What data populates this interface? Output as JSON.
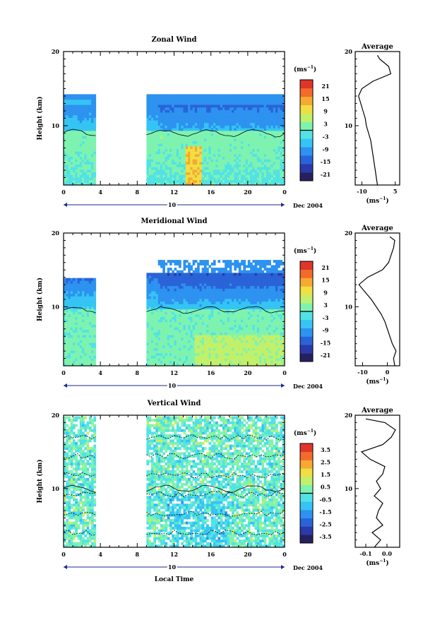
{
  "colors": {
    "cmap": [
      "#27205f",
      "#2a3aa9",
      "#2a63d8",
      "#2d92f0",
      "#35c4f3",
      "#52e2e6",
      "#7ef3b0",
      "#c1f06a",
      "#f0de42",
      "#f7a932",
      "#f36b2b",
      "#e0352a"
    ],
    "contour": "#000000",
    "axis": "#000000"
  },
  "shared": {
    "x_label": "Local Time",
    "date_day": "10",
    "date_label": "Dec 2004",
    "height_axis_label": "Height (km)",
    "avg_title": "Average",
    "unit_label": "(ms",
    "unit_sup": "−1",
    "x_ticks": [
      "0",
      "4",
      "8",
      "12",
      "16",
      "20",
      "0"
    ],
    "y_ticks": [
      "20",
      "10"
    ]
  },
  "chart_data": [
    {
      "type": "heatmap",
      "title": "Zonal Wind",
      "ylabel": "Height (km)",
      "x_range_hours": [
        0,
        24
      ],
      "y_range_km": [
        2,
        20
      ],
      "gaps_hours": [
        [
          3.5,
          9
        ]
      ],
      "colorbar": {
        "unit": "(ms−1)",
        "ticks": [
          "21",
          "15",
          "9",
          "3",
          "-3",
          "-9",
          "-15",
          "-21"
        ],
        "range": [
          -24,
          24
        ]
      },
      "profile": {
        "title": "Average",
        "xlim": [
          -13,
          7
        ],
        "x_ticks": [
          "-10",
          "5"
        ],
        "xlabel": "(ms−1)",
        "z_km": [
          2,
          3,
          4,
          5,
          6,
          7,
          8,
          9,
          10,
          11,
          12,
          13,
          14,
          15,
          16,
          17,
          18,
          19,
          19.5
        ],
        "values": [
          -3,
          -3.5,
          -4,
          -4.5,
          -5,
          -5.5,
          -6,
          -7,
          -8,
          -8.5,
          -9.5,
          -10.5,
          -11.5,
          -10,
          -5,
          3,
          2,
          -2,
          -3
        ]
      }
    },
    {
      "type": "heatmap",
      "title": "Meridional Wind",
      "ylabel": "Height (km)",
      "x_range_hours": [
        0,
        24
      ],
      "y_range_km": [
        2,
        20
      ],
      "gaps_hours": [
        [
          3.5,
          9
        ]
      ],
      "colorbar": {
        "unit": "(ms−1)",
        "ticks": [
          "21",
          "15",
          "9",
          "3",
          "-3",
          "-9",
          "-15",
          "-21"
        ],
        "range": [
          -24,
          24
        ]
      },
      "profile": {
        "title": "Average",
        "xlim": [
          -13,
          5
        ],
        "x_ticks": [
          "-10",
          "0"
        ],
        "xlabel": "(ms−1)",
        "z_km": [
          2,
          3,
          4,
          5,
          6,
          7,
          8,
          9,
          10,
          11,
          12,
          13,
          14,
          15,
          16,
          17,
          18,
          19,
          19.5
        ],
        "values": [
          3,
          2.5,
          3.5,
          2,
          1,
          0,
          -1,
          -2.5,
          -4.5,
          -6.5,
          -9,
          -11.5,
          -8,
          -2,
          0.5,
          1.5,
          2.5,
          3,
          1
        ]
      }
    },
    {
      "type": "heatmap",
      "title": "Vertical Wind",
      "ylabel": "Height (km)",
      "xlabel": "Local Time",
      "x_range_hours": [
        0,
        24
      ],
      "y_range_km": [
        2,
        20
      ],
      "gaps_hours": [
        [
          3.5,
          9
        ]
      ],
      "colorbar": {
        "unit": "(ms−1)",
        "ticks": [
          "3.5",
          "2.5",
          "1.5",
          "0.5",
          "-0.5",
          "-1.5",
          "-2.5",
          "-3.5"
        ],
        "range": [
          -4,
          4
        ]
      },
      "profile": {
        "title": "Average",
        "xlim": [
          -0.15,
          0.06
        ],
        "x_ticks": [
          "-0.1",
          "0.0"
        ],
        "xlabel": "(ms−1)",
        "z_km": [
          2,
          3,
          4,
          5,
          6,
          7,
          8,
          9,
          10,
          11,
          12,
          13,
          14,
          15,
          16,
          17,
          18,
          19,
          19.5
        ],
        "values": [
          -0.06,
          -0.03,
          -0.07,
          -0.02,
          -0.05,
          -0.04,
          -0.02,
          -0.06,
          -0.03,
          -0.05,
          -0.02,
          -0.01,
          -0.08,
          -0.12,
          -0.02,
          0.02,
          0.04,
          -0.01,
          -0.1
        ]
      }
    }
  ]
}
